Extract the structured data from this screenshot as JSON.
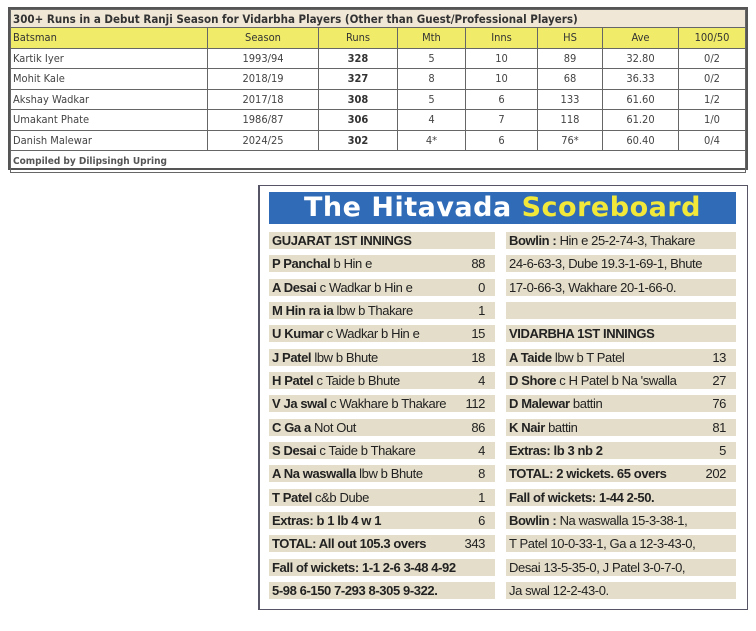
{
  "stats_table": {
    "title": "300+ Runs in a Debut Ranji Season for Vidarbha Players (Other than Guest/Professional Players)",
    "headers": [
      "Batsman",
      "Season",
      "Runs",
      "Mth",
      "Inns",
      "HS",
      "Ave",
      "100/50"
    ],
    "rows": [
      [
        "Kartik Iyer",
        "1993/94",
        "328",
        "5",
        "10",
        "89",
        "32.80",
        "0/2"
      ],
      [
        "Mohit Kale",
        "2018/19",
        "327",
        "8",
        "10",
        "68",
        "36.33",
        "0/2"
      ],
      [
        "Akshay Wadkar",
        "2017/18",
        "308",
        "5",
        "6",
        "133",
        "61.60",
        "1/2"
      ],
      [
        "Umakant Phate",
        "1986/87",
        "306",
        "4",
        "7",
        "118",
        "61.20",
        "1/0"
      ],
      [
        "Danish Malewar",
        "2024/25",
        "302",
        "4*",
        "6",
        "76*",
        "60.40",
        "0/4"
      ]
    ],
    "credit": "Compiled by Dilipsingh Upring"
  },
  "scoreboard": {
    "title_white": "The Hitavada",
    "title_yellow": "Scoreboard",
    "colors": {
      "banner": "#2f6bb7",
      "title_yellow": "#f2e83a",
      "row_band": "#e4ddc9"
    },
    "left": [
      {
        "b": "GUJARAT 1ST INNINGS",
        "t": "",
        "v": ""
      },
      {
        "b": "P Panchal",
        "t": " b Hin  e",
        "v": "88"
      },
      {
        "b": "A Desai",
        "t": " c Wadkar b Hin  e",
        "v": "0"
      },
      {
        "b": "M Hin  ra ia",
        "t": " lbw b Thakare",
        "v": "1"
      },
      {
        "b": "U Kumar",
        "t": " c Wadkar b Hin  e",
        "v": "15"
      },
      {
        "b": "J Patel",
        "t": " lbw b Bhute",
        "v": "18"
      },
      {
        "b": "H Patel",
        "t": " c Taide b Bhute",
        "v": "4"
      },
      {
        "b": "V Ja  swal",
        "t": " c Wakhare b Thakare",
        "v": "112"
      },
      {
        "b": "C Ga a",
        "t": " Not Out",
        "v": "86"
      },
      {
        "b": "S Desai",
        "t": " c Taide b Thakare",
        "v": "4"
      },
      {
        "b": "A Na  waswalla",
        "t": " lbw b Bhute",
        "v": "8"
      },
      {
        "b": "T Patel",
        "t": " c&b Dube",
        "v": "1"
      },
      {
        "b": "Extras:  b 1  lb 4  w 1",
        "t": "",
        "v": "6"
      },
      {
        "b": "TOTAL:  All out  105.3 overs",
        "t": "",
        "v": "343"
      },
      {
        "b": "Fall of wickets: 1-1  2-6  3-48  4-92",
        "t": "",
        "v": ""
      },
      {
        "b": "5-98  6-150  7-293  8-305  9-322.",
        "t": "",
        "v": ""
      }
    ],
    "right": [
      {
        "b": "Bowlin  :",
        "t": " Hin  e 25-2-74-3, Thakare",
        "v": ""
      },
      {
        "b": "",
        "t": "24-6-63-3, Dube   19.3-1-69-1, Bhute",
        "v": ""
      },
      {
        "b": "",
        "t": "17-0-66-3, Wakhare 20-1-66-0.",
        "v": ""
      },
      {
        "b": "",
        "t": "",
        "v": ""
      },
      {
        "b": "VIDARBHA 1ST INNINGS",
        "t": "",
        "v": ""
      },
      {
        "b": "A Taide",
        "t": " lbw b T Patel",
        "v": "13"
      },
      {
        "b": "D Shore",
        "t": "    c H Patel b Na  'swalla",
        "v": "27"
      },
      {
        "b": "D Malewar",
        "t": " battin",
        "v": "76"
      },
      {
        "b": "K Nair",
        "t": " battin",
        "v": "81"
      },
      {
        "b": "Extras:  lb 3  nb 2",
        "t": "",
        "v": "5"
      },
      {
        "b": "TOTAL:  2 wickets. 65 overs",
        "t": "",
        "v": "202"
      },
      {
        "b": "Fall of wickets: 1-44  2-50.",
        "t": "",
        "v": ""
      },
      {
        "b": "Bowlin  :",
        "t": " Na  waswalla 15-3-38-1,",
        "v": ""
      },
      {
        "b": "",
        "t": "T Patel 10-0-33-1, Ga a 12-3-43-0,",
        "v": ""
      },
      {
        "b": "",
        "t": "Desai 13-5-35-0, J Patel 3-0-7-0,",
        "v": ""
      },
      {
        "b": "",
        "t": "Ja  swal 12-2-43-0.",
        "v": ""
      }
    ]
  }
}
